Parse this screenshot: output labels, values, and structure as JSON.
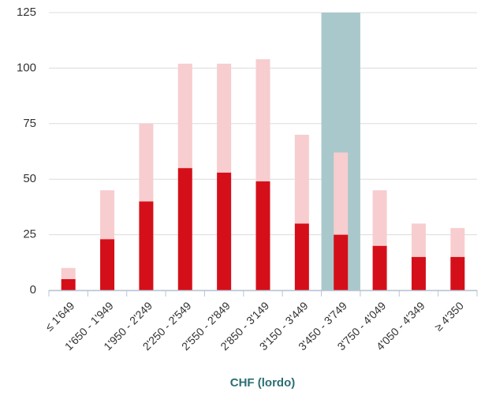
{
  "chart_data": {
    "type": "stacked_bar",
    "x_label": "CHF (lordo)",
    "categories": [
      "≤ 1'649",
      "1'650 - 1'949",
      "1'950 - 2'249",
      "2'250 - 2'549",
      "2'550 - 2'849",
      "2'850 - 3'149",
      "3'150 - 3'449",
      "3'450 - 3'749",
      "3'750 - 4'049",
      "4'050 - 4'349",
      "≥ 4'350"
    ],
    "series": [
      {
        "color": "#d50f19",
        "values": [
          5,
          23,
          40,
          55,
          53,
          49,
          30,
          25,
          20,
          15,
          15
        ]
      },
      {
        "color": "#f7cdcf",
        "values": [
          5,
          22,
          35,
          47,
          49,
          55,
          40,
          37,
          25,
          15,
          13
        ]
      }
    ],
    "highlight": 7,
    "highlight_color": "#a9c8cb",
    "ylim": [
      0,
      125
    ],
    "yticks": [
      0,
      25,
      50,
      75,
      100,
      125
    ],
    "grid": true
  }
}
